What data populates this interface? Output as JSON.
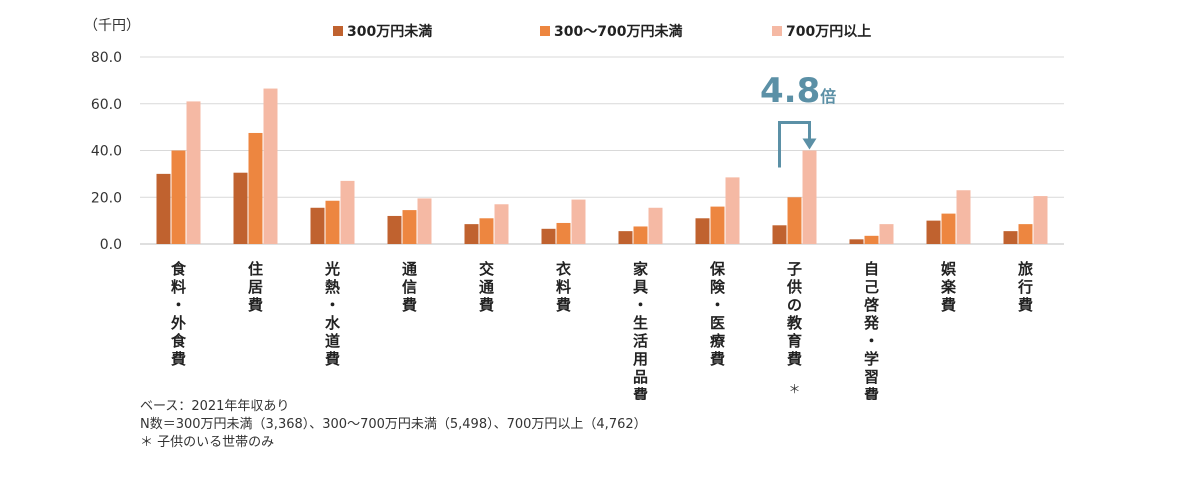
{
  "chart_data": {
    "type": "bar",
    "unit_label": "（千円）",
    "categories": [
      "食料・外食費",
      "住居費",
      "光熱・水道費",
      "通信費",
      "交通費",
      "衣料費",
      "家具・生活用品費",
      "保険・医療費",
      "子供の教育費",
      "自己啓発・学習費",
      "娯楽費",
      "旅行費"
    ],
    "category_notes": [
      "",
      "",
      "",
      "",
      "",
      "",
      "",
      "",
      "＊",
      "",
      "",
      ""
    ],
    "series": [
      {
        "name": "300万円未満",
        "color": "#c0622f",
        "values": [
          30.0,
          30.5,
          15.5,
          12.0,
          8.5,
          6.5,
          5.5,
          11.0,
          8.0,
          2.0,
          10.0,
          5.5
        ]
      },
      {
        "name": "300～700万円未満",
        "color": "#ed8640",
        "values": [
          40.0,
          47.5,
          18.5,
          14.5,
          11.0,
          9.0,
          7.5,
          16.0,
          20.0,
          3.5,
          13.0,
          8.5
        ]
      },
      {
        "name": "700万円以上",
        "color": "#f5b9a4",
        "values": [
          61.0,
          66.5,
          27.0,
          19.5,
          17.0,
          19.0,
          15.5,
          28.5,
          40.0,
          8.5,
          23.0,
          20.5
        ]
      }
    ],
    "ylim": [
      0,
      80
    ],
    "yticks": [
      "80.0",
      "60.0",
      "40.0",
      "20.0",
      "0.0"
    ],
    "grid": true,
    "legend_position": "top",
    "annotation": {
      "category_index": 8,
      "text": "4.8",
      "suffix": "倍",
      "color": "#5b90a6"
    }
  },
  "notes": [
    "ベース：2021年年収あり",
    "N数＝300万円未満（3,368）、300～700万円未満（5,498）、700万円以上（4,762）",
    "＊ 子供のいる世帯のみ"
  ]
}
